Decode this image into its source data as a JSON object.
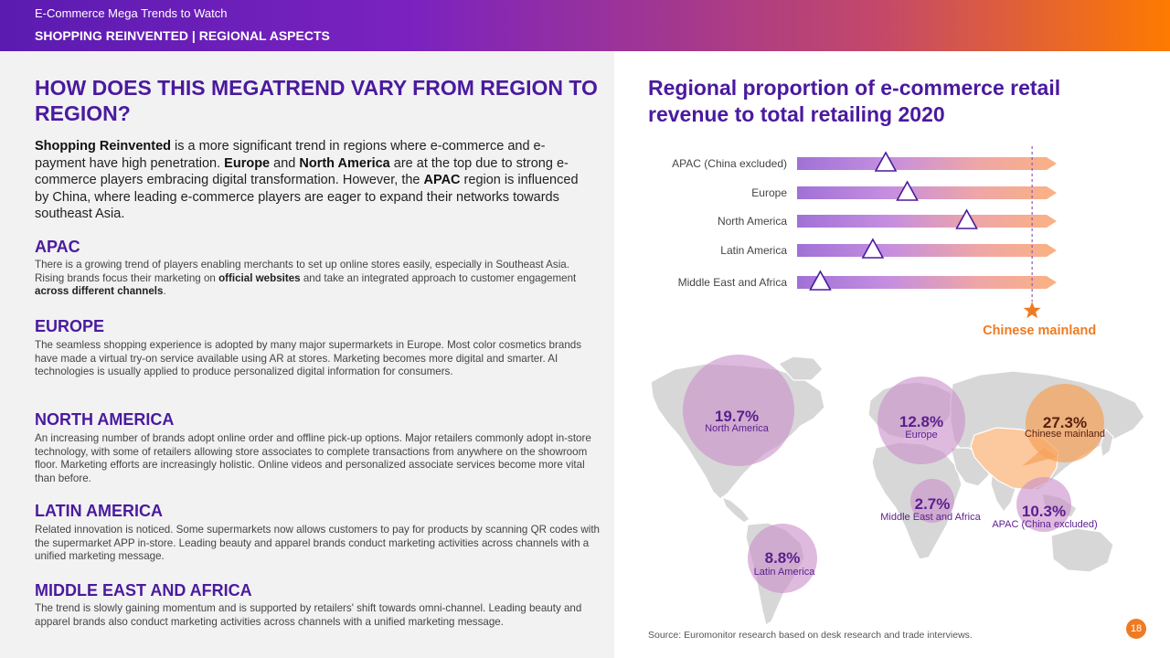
{
  "header": {
    "series_title": "E-Commerce Mega Trends to Watch",
    "section": "SHOPPING REINVENTED | REGIONAL ASPECTS"
  },
  "left": {
    "question": "HOW DOES THIS MEGATREND VARY FROM REGION TO REGION?",
    "intro": [
      {
        "t": "Shopping Reinvented",
        "b": true
      },
      {
        "t": " is a more significant trend in regions where e-commerce and e-payment have high penetration. ",
        "b": false
      },
      {
        "t": "Europe",
        "b": true
      },
      {
        "t": " and ",
        "b": false
      },
      {
        "t": "North America",
        "b": true
      },
      {
        "t": " are at the top due to strong e-commerce players embracing digital transformation. However, the ",
        "b": false
      },
      {
        "t": "APAC",
        "b": true
      },
      {
        "t": " region is influenced by China, where leading e-commerce players are eager to expand their networks towards southeast Asia.",
        "b": false
      }
    ],
    "sections": [
      {
        "name": "apac",
        "heading": "APAC",
        "parts": [
          {
            "t": "There is a growing trend of players enabling merchants to set up online stores easily, especially in Southeast Asia. Rising brands focus their marketing on ",
            "b": false
          },
          {
            "t": "official websites",
            "b": true
          },
          {
            "t": " and take an integrated approach to customer engagement ",
            "b": false
          },
          {
            "t": "across different channels",
            "b": true
          },
          {
            "t": ".",
            "b": false
          }
        ]
      },
      {
        "name": "europe",
        "heading": "EUROPE",
        "parts": [
          {
            "t": "The seamless shopping experience is adopted by many major supermarkets in Europe. Most color cosmetics brands have made a virtual try-on service available using AR at stores. Marketing becomes more digital and smarter. AI technologies is usually applied to produce personalized digital information for consumers.",
            "b": false
          }
        ]
      },
      {
        "name": "north-america",
        "heading": "NORTH AMERICA",
        "parts": [
          {
            "t": "An increasing number of brands adopt online order and offline pick-up options. Major retailers commonly adopt in-store technology, with some of retailers allowing store associates to complete transactions from anywhere on the showroom floor. Marketing efforts are increasingly holistic. Online videos and personalized associate services become more vital than before.",
            "b": false
          }
        ]
      },
      {
        "name": "latin-america",
        "heading": "LATIN AMERICA",
        "parts": [
          {
            "t": "Related innovation is noticed. Some supermarkets now allows customers to pay for products by scanning QR codes with the supermarket APP in-store. Leading beauty and apparel brands conduct marketing activities across channels with a unified marketing message.",
            "b": false
          }
        ]
      },
      {
        "name": "middle-east-africa",
        "heading": "MIDDLE EAST AND AFRICA",
        "parts": [
          {
            "t": "The trend is slowly gaining momentum and is supported by retailers' shift towards omni-channel. Leading beauty and apparel brands also conduct marketing activities across channels with a unified marketing message.",
            "b": false
          }
        ]
      }
    ]
  },
  "chart_data": {
    "type": "bar",
    "title": "Regional proportion of e-commerce retail revenue to total retailing 2020",
    "unit": "%",
    "ylim": [
      0,
      30
    ],
    "categories": [
      "APAC (China excluded)",
      "Europe",
      "North America",
      "Latin America",
      "Middle East and Africa"
    ],
    "values": [
      10.3,
      12.8,
      19.7,
      8.8,
      2.7
    ],
    "reference": {
      "label": "Chinese mainland",
      "value": 27.3
    },
    "map_labels": [
      {
        "name": "north-america",
        "value": "19.7%",
        "label": "North America"
      },
      {
        "name": "europe",
        "value": "12.8%",
        "label": "Europe"
      },
      {
        "name": "chinese-mainland",
        "value": "27.3%",
        "label": "Chinese mainland"
      },
      {
        "name": "middle-east-africa",
        "value": "2.7%",
        "label": "Middle East and Africa"
      },
      {
        "name": "apac-ex-china",
        "value": "10.3%",
        "label": "APAC (China excluded)"
      },
      {
        "name": "latin-america",
        "value": "8.8%",
        "label": "Latin America"
      }
    ]
  },
  "source": "Source: Euromonitor research based on desk research and trade interviews.",
  "page_number": "18",
  "colors": {
    "purple": "#4a1a9e",
    "orange": "#f07a22",
    "bubble": "#c990c9",
    "bubble_text": "#5a1e8e"
  }
}
